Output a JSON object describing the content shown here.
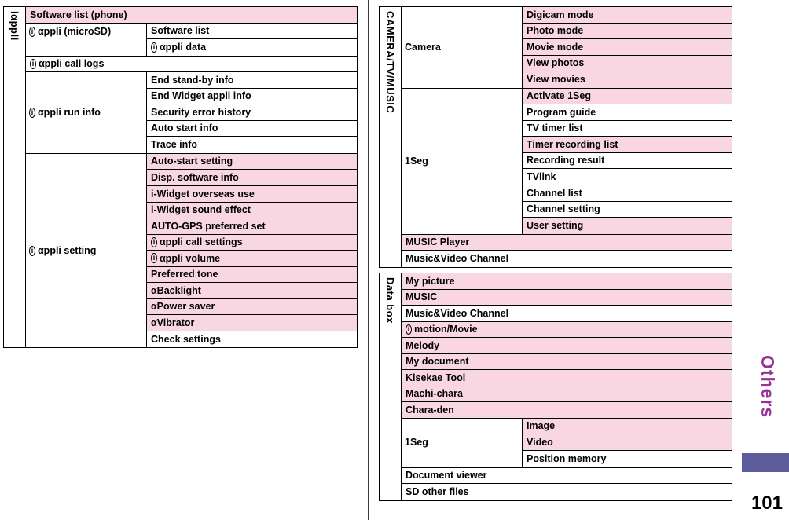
{
  "page": {
    "number": "101",
    "side_tab": "Others"
  },
  "colors": {
    "row_pink": "#f8d6e2",
    "tab_purple": "#9a3198",
    "block_purple": "#5d5d9b"
  },
  "icons": {
    "i_mode": "i"
  },
  "iappli": {
    "group": "iαppli",
    "software_list_phone": "Software list (phone)",
    "microsd": {
      "category": "αppli (microSD)",
      "items": [
        "Software list",
        "αppli data"
      ]
    },
    "call_logs": "αppli call logs",
    "run_info": {
      "category": "αppli run info",
      "items": [
        "End stand-by info",
        "End Widget appli info",
        "Security error history",
        "Auto start info",
        "Trace info"
      ]
    },
    "setting": {
      "category": "αppli setting",
      "items": [
        "Auto-start setting",
        "Disp. software info",
        "i-Widget overseas use",
        "i-Widget sound effect",
        "AUTO-GPS preferred set",
        "αppli call settings",
        "αppli volume",
        "Preferred tone",
        "αBacklight",
        "αPower saver",
        "αVibrator",
        "Check settings"
      ]
    }
  },
  "camera_tv_music": {
    "group": "CAMERA/TV/MUSIC",
    "camera": {
      "category": "Camera",
      "items": [
        "Digicam mode",
        "Photo mode",
        "Movie mode",
        "View photos",
        "View movies"
      ]
    },
    "oneseg": {
      "category": "1Seg",
      "items": [
        "Activate 1Seg",
        "Program guide",
        "TV timer list",
        "Timer recording list",
        "Recording result",
        "TVlink",
        "Channel list",
        "Channel setting",
        "User setting"
      ]
    },
    "music_player": "MUSIC Player",
    "music_video_channel": "Music&Video Channel"
  },
  "data_box": {
    "group": "Data box",
    "rows": [
      "My picture",
      "MUSIC",
      "Music&Video Channel",
      "motion/Movie",
      "Melody",
      "My document",
      "Kisekae Tool",
      "Machi-chara",
      "Chara-den"
    ],
    "oneseg": {
      "category": "1Seg",
      "items": [
        "Image",
        "Video",
        "Position memory"
      ]
    },
    "document_viewer": "Document viewer",
    "sd_other_files": "SD other files"
  }
}
